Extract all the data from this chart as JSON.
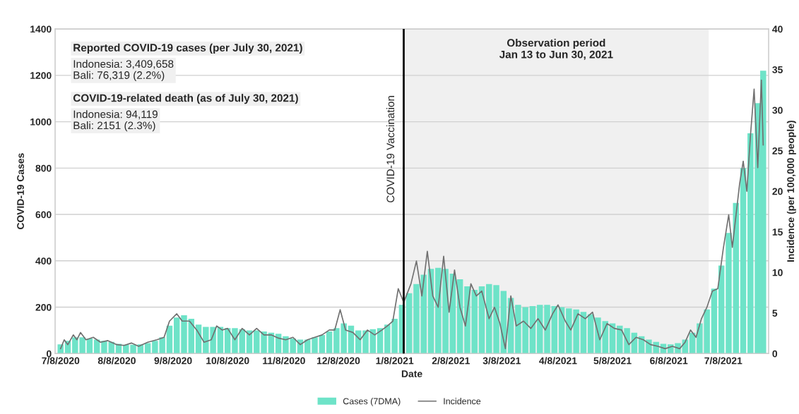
{
  "chart_data": {
    "type": "bar",
    "xlabel": "Date",
    "ylabel": "COVID-19 Cases",
    "y2label": "Incidence (per 100,000 people)",
    "xlim": [
      "2020-07-05",
      "2021-08-02"
    ],
    "xticks": [
      {
        "value": "2020-07-08",
        "label": "7/8/2020"
      },
      {
        "value": "2020-08-08",
        "label": "8/8/2020"
      },
      {
        "value": "2020-09-08",
        "label": "9/8/2020"
      },
      {
        "value": "2020-10-08",
        "label": "10/8/2020"
      },
      {
        "value": "2020-11-08",
        "label": "11/8/2020"
      },
      {
        "value": "2020-12-08",
        "label": "12/8/2020"
      },
      {
        "value": "2021-01-08",
        "label": "1/8/2021"
      },
      {
        "value": "2021-02-08",
        "label": "2/8/2021"
      },
      {
        "value": "2021-03-08",
        "label": "3/8/2021"
      },
      {
        "value": "2021-04-08",
        "label": "4/8/2021"
      },
      {
        "value": "2021-05-08",
        "label": "5/8/2021"
      },
      {
        "value": "2021-06-08",
        "label": "6/8/2021"
      },
      {
        "value": "2021-07-08",
        "label": "7/8/2021"
      }
    ],
    "ylim": [
      0,
      1400
    ],
    "yticks": [
      0,
      200,
      400,
      600,
      800,
      1000,
      1200,
      1400
    ],
    "y2lim": [
      0,
      40
    ],
    "y2ticks": [
      0,
      5,
      10,
      15,
      20,
      25,
      30,
      35,
      40
    ],
    "grid": "y",
    "legend": "bottom",
    "series": [
      {
        "name": "Cases (7DMA)",
        "color": "#6ee3c8",
        "x": [
          "2020-07-08",
          "2020-07-12",
          "2020-07-16",
          "2020-07-20",
          "2020-07-24",
          "2020-07-28",
          "2020-08-01",
          "2020-08-05",
          "2020-08-09",
          "2020-08-13",
          "2020-08-17",
          "2020-08-21",
          "2020-08-25",
          "2020-08-29",
          "2020-09-02",
          "2020-09-06",
          "2020-09-10",
          "2020-09-14",
          "2020-09-18",
          "2020-09-22",
          "2020-09-26",
          "2020-09-30",
          "2020-10-04",
          "2020-10-08",
          "2020-10-12",
          "2020-10-16",
          "2020-10-20",
          "2020-10-24",
          "2020-10-28",
          "2020-11-01",
          "2020-11-05",
          "2020-11-09",
          "2020-11-13",
          "2020-11-17",
          "2020-11-21",
          "2020-11-25",
          "2020-11-29",
          "2020-12-03",
          "2020-12-07",
          "2020-12-11",
          "2020-12-15",
          "2020-12-19",
          "2020-12-23",
          "2020-12-27",
          "2020-12-31",
          "2021-01-04",
          "2021-01-08",
          "2021-01-12",
          "2021-01-16",
          "2021-01-20",
          "2021-01-24",
          "2021-01-28",
          "2021-02-01",
          "2021-02-05",
          "2021-02-09",
          "2021-02-13",
          "2021-02-17",
          "2021-02-21",
          "2021-02-25",
          "2021-03-01",
          "2021-03-05",
          "2021-03-09",
          "2021-03-13",
          "2021-03-17",
          "2021-03-21",
          "2021-03-25",
          "2021-03-29",
          "2021-04-02",
          "2021-04-06",
          "2021-04-10",
          "2021-04-14",
          "2021-04-18",
          "2021-04-22",
          "2021-04-26",
          "2021-04-30",
          "2021-05-04",
          "2021-05-08",
          "2021-05-12",
          "2021-05-16",
          "2021-05-20",
          "2021-05-24",
          "2021-05-28",
          "2021-06-01",
          "2021-06-05",
          "2021-06-09",
          "2021-06-13",
          "2021-06-17",
          "2021-06-21",
          "2021-06-25",
          "2021-06-29",
          "2021-07-03",
          "2021-07-07",
          "2021-07-11",
          "2021-07-15",
          "2021-07-19",
          "2021-07-23",
          "2021-07-27",
          "2021-07-30"
        ],
        "values": [
          40,
          55,
          70,
          70,
          65,
          60,
          55,
          50,
          42,
          38,
          38,
          40,
          45,
          55,
          70,
          120,
          155,
          165,
          150,
          125,
          115,
          115,
          115,
          110,
          110,
          105,
          100,
          100,
          95,
          90,
          85,
          75,
          65,
          60,
          60,
          70,
          80,
          95,
          110,
          130,
          120,
          100,
          100,
          105,
          110,
          125,
          150,
          210,
          260,
          300,
          340,
          365,
          370,
          365,
          345,
          320,
          290,
          275,
          290,
          300,
          295,
          270,
          240,
          210,
          200,
          205,
          210,
          210,
          205,
          200,
          195,
          190,
          180,
          170,
          155,
          140,
          130,
          120,
          110,
          90,
          75,
          60,
          50,
          42,
          40,
          45,
          60,
          90,
          130,
          190,
          280,
          380,
          520,
          650,
          800,
          950,
          1080,
          1220
        ]
      },
      {
        "type": "line",
        "name": "Incidence",
        "color": "#707070",
        "axis": "y2",
        "x": [
          "2020-07-08",
          "2020-07-10",
          "2020-07-12",
          "2020-07-15",
          "2020-07-17",
          "2020-07-19",
          "2020-07-22",
          "2020-07-26",
          "2020-07-30",
          "2020-08-03",
          "2020-08-08",
          "2020-08-12",
          "2020-08-16",
          "2020-08-20",
          "2020-08-25",
          "2020-08-30",
          "2020-09-03",
          "2020-09-06",
          "2020-09-10",
          "2020-09-13",
          "2020-09-17",
          "2020-09-21",
          "2020-09-25",
          "2020-09-29",
          "2020-10-02",
          "2020-10-05",
          "2020-10-08",
          "2020-10-12",
          "2020-10-16",
          "2020-10-20",
          "2020-10-24",
          "2020-10-28",
          "2020-11-01",
          "2020-11-05",
          "2020-11-09",
          "2020-11-13",
          "2020-11-17",
          "2020-11-21",
          "2020-11-25",
          "2020-11-29",
          "2020-12-03",
          "2020-12-06",
          "2020-12-09",
          "2020-12-12",
          "2020-12-16",
          "2020-12-20",
          "2020-12-24",
          "2020-12-28",
          "2021-01-01",
          "2021-01-04",
          "2021-01-07",
          "2021-01-10",
          "2021-01-13",
          "2021-01-17",
          "2021-01-20",
          "2021-01-23",
          "2021-01-26",
          "2021-01-29",
          "2021-02-01",
          "2021-02-04",
          "2021-02-07",
          "2021-02-10",
          "2021-02-13",
          "2021-02-16",
          "2021-02-19",
          "2021-02-22",
          "2021-02-25",
          "2021-03-01",
          "2021-03-04",
          "2021-03-07",
          "2021-03-10",
          "2021-03-13",
          "2021-03-16",
          "2021-03-20",
          "2021-03-24",
          "2021-03-28",
          "2021-04-01",
          "2021-04-05",
          "2021-04-08",
          "2021-04-12",
          "2021-04-15",
          "2021-04-19",
          "2021-04-23",
          "2021-04-27",
          "2021-05-01",
          "2021-05-05",
          "2021-05-09",
          "2021-05-13",
          "2021-05-17",
          "2021-05-21",
          "2021-05-25",
          "2021-05-29",
          "2021-06-02",
          "2021-06-06",
          "2021-06-10",
          "2021-06-14",
          "2021-06-17",
          "2021-06-20",
          "2021-06-23",
          "2021-06-26",
          "2021-06-29",
          "2021-07-02",
          "2021-07-05",
          "2021-07-08",
          "2021-07-11",
          "2021-07-13",
          "2021-07-17",
          "2021-07-19",
          "2021-07-21",
          "2021-07-23",
          "2021-07-25",
          "2021-07-27",
          "2021-07-29",
          "2021-07-30"
        ],
        "values": [
          0.6,
          1.7,
          1.1,
          2.3,
          1.7,
          2.6,
          1.7,
          2.0,
          1.4,
          1.6,
          1.1,
          1.0,
          1.3,
          0.9,
          1.4,
          1.7,
          2.0,
          4.0,
          4.9,
          4.0,
          4.0,
          2.9,
          1.4,
          1.7,
          3.4,
          2.9,
          3.1,
          1.7,
          3.1,
          2.3,
          3.1,
          2.3,
          2.3,
          1.9,
          1.7,
          2.0,
          1.1,
          1.7,
          2.0,
          2.3,
          2.9,
          2.9,
          5.4,
          2.9,
          2.6,
          1.7,
          2.9,
          2.3,
          2.9,
          3.4,
          4.0,
          8.0,
          6.3,
          8.6,
          11.4,
          7.1,
          12.6,
          7.1,
          5.7,
          12.0,
          5.1,
          10.3,
          5.7,
          3.4,
          8.6,
          7.1,
          7.7,
          4.3,
          5.7,
          3.7,
          0.6,
          7.1,
          3.4,
          4.0,
          3.1,
          4.3,
          2.9,
          4.9,
          6.0,
          4.0,
          2.9,
          4.9,
          4.3,
          5.1,
          1.7,
          3.7,
          3.1,
          2.9,
          1.1,
          2.0,
          1.7,
          1.1,
          0.9,
          0.6,
          0.9,
          0.6,
          1.4,
          2.9,
          2.0,
          4.3,
          5.7,
          7.7,
          8.0,
          12.9,
          17.1,
          13.1,
          20.9,
          23.7,
          20.0,
          26.9,
          32.6,
          22.9,
          33.7,
          25.7
        ]
      }
    ],
    "ref_lines": [
      {
        "axis": "x",
        "value": "2021-01-13",
        "label": "COVID-19 Vaccination",
        "color": "#000000"
      }
    ],
    "bands": [
      {
        "axis": "x",
        "from": "2021-01-13",
        "to": "2021-06-30",
        "label": "Observation period\nJan 13 to Jun 30, 2021",
        "color": "#f0f0f0"
      }
    ],
    "annotations": [
      "Reported COVID-19 cases (per July 30, 2021)",
      "Indonesia: 3,409,658\nBali: 76,319 (2.2%)",
      "COVID-19-related death (as of July 30, 2021)",
      "Indonesia: 94,119\nBali: 2151 (2.3%)"
    ]
  }
}
